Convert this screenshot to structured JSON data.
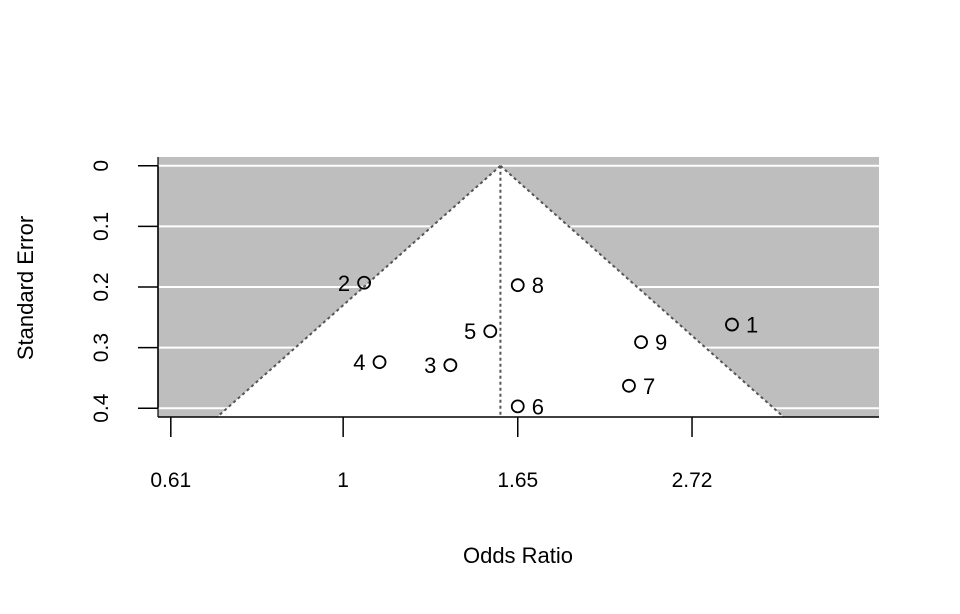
{
  "chart_data": {
    "type": "scatter",
    "subtype": "funnel-plot",
    "title": "",
    "xlabel": "Odds Ratio",
    "ylabel": "Standard Error",
    "x_scale": "log",
    "x_ticks": [
      0.61,
      1,
      1.65,
      2.72
    ],
    "x_tick_labels": [
      "0.61",
      "1",
      "1.65",
      "2.72"
    ],
    "y_ticks": [
      0,
      0.1,
      0.2,
      0.3,
      0.4
    ],
    "y_tick_labels": [
      "0",
      "0.1",
      "0.2",
      "0.3",
      "0.4"
    ],
    "xlim": [
      0.588,
      4.65
    ],
    "ylim": [
      0.4145,
      -0.0145
    ],
    "y_reversed": true,
    "pooled_estimate": 1.57,
    "funnel_z": 1.96,
    "background_color": "#bebebe",
    "funnel_interior_color": "#ffffff",
    "grid": true,
    "points": [
      {
        "label": "1",
        "x": 3.05,
        "y": 0.262
      },
      {
        "label": "2",
        "x": 1.062,
        "y": 0.193
      },
      {
        "label": "3",
        "x": 1.36,
        "y": 0.329
      },
      {
        "label": "4",
        "x": 1.11,
        "y": 0.324
      },
      {
        "label": "5",
        "x": 1.525,
        "y": 0.273
      },
      {
        "label": "6",
        "x": 1.65,
        "y": 0.397
      },
      {
        "label": "7",
        "x": 2.27,
        "y": 0.363
      },
      {
        "label": "8",
        "x": 1.65,
        "y": 0.197
      },
      {
        "label": "9",
        "x": 2.35,
        "y": 0.291
      }
    ]
  }
}
